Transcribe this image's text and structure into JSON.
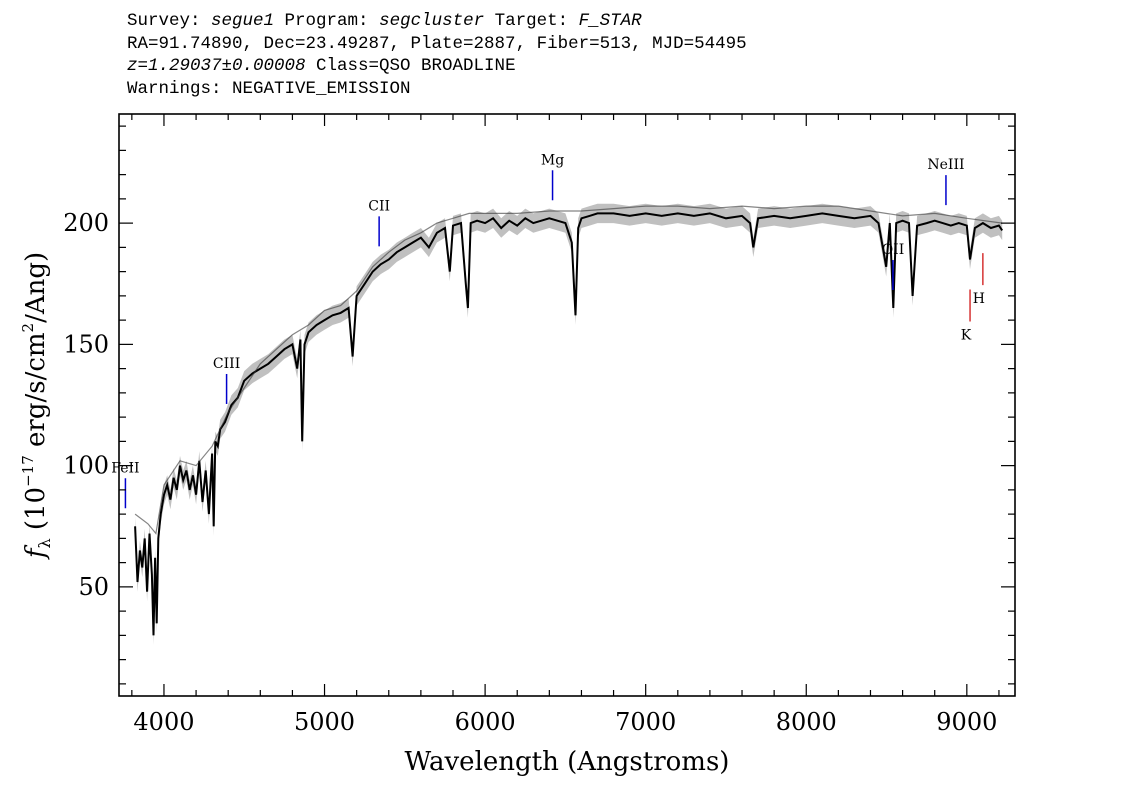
{
  "header": {
    "survey_label": "Survey: ",
    "survey": "segue1",
    "program_label": " Program: ",
    "program": "segcluster",
    "target_label": " Target: ",
    "target": "F_STAR",
    "line2": "RA=91.74890, Dec=23.49287, Plate=2887, Fiber=513, MJD=54495",
    "z": "z=1.29037±0.00008",
    "class": " Class=QSO BROADLINE",
    "warnings": "Warnings: NEGATIVE_EMISSION"
  },
  "chart_data": {
    "type": "line",
    "xlabel": "Wavelength (Angstroms)",
    "ylabel": "f_λ (10^-17 erg/s/cm^2/Ang)",
    "xlim": [
      3720,
      9300
    ],
    "ylim": [
      5,
      245
    ],
    "xticks": [
      4000,
      5000,
      6000,
      7000,
      8000,
      9000
    ],
    "yticks": [
      50,
      100,
      150,
      200
    ],
    "series": [
      {
        "name": "",
        "x": [
          3820,
          3835,
          3850,
          3865,
          3880,
          3895,
          3910,
          3925,
          3935,
          3945,
          3955,
          3965,
          3980,
          4000,
          4020,
          4040,
          4060,
          4080,
          4100,
          4120,
          4140,
          4160,
          4180,
          4200,
          4220,
          4240,
          4260,
          4280,
          4300,
          4310,
          4320,
          4335,
          4350,
          4380,
          4420,
          4460,
          4500,
          4550,
          4600,
          4650,
          4700,
          4750,
          4800,
          4830,
          4850,
          4861,
          4875,
          4900,
          4950,
          5000,
          5050,
          5100,
          5150,
          5175,
          5200,
          5250,
          5300,
          5350,
          5400,
          5450,
          5500,
          5550,
          5600,
          5650,
          5700,
          5750,
          5780,
          5800,
          5850,
          5880,
          5893,
          5910,
          5950,
          6000,
          6050,
          6100,
          6150,
          6200,
          6250,
          6300,
          6350,
          6400,
          6450,
          6500,
          6540,
          6563,
          6580,
          6600,
          6650,
          6700,
          6800,
          6900,
          7000,
          7100,
          7200,
          7300,
          7400,
          7500,
          7600,
          7650,
          7670,
          7700,
          7800,
          7900,
          8000,
          8100,
          8200,
          8300,
          8400,
          8450,
          8498,
          8520,
          8542,
          8560,
          8600,
          8640,
          8662,
          8690,
          8750,
          8800,
          8850,
          8900,
          8950,
          9000,
          9020,
          9050,
          9100,
          9150,
          9200,
          9220
        ],
        "y": [
          75,
          52,
          65,
          58,
          70,
          48,
          72,
          55,
          30,
          62,
          35,
          70,
          80,
          88,
          92,
          86,
          95,
          90,
          100,
          94,
          98,
          90,
          96,
          88,
          102,
          85,
          98,
          80,
          105,
          75,
          110,
          108,
          115,
          118,
          125,
          128,
          135,
          138,
          140,
          142,
          145,
          148,
          150,
          140,
          152,
          110,
          150,
          155,
          158,
          160,
          162,
          163,
          165,
          145,
          170,
          175,
          180,
          183,
          185,
          188,
          190,
          192,
          194,
          190,
          196,
          198,
          180,
          199,
          200,
          175,
          165,
          200,
          201,
          200,
          202,
          198,
          201,
          199,
          202,
          200,
          201,
          202,
          201,
          200,
          192,
          162,
          198,
          202,
          203,
          204,
          204,
          203,
          204,
          203,
          204,
          203,
          204,
          202,
          203,
          200,
          190,
          202,
          203,
          202,
          203,
          204,
          203,
          202,
          203,
          200,
          182,
          200,
          165,
          200,
          201,
          200,
          170,
          199,
          200,
          201,
          200,
          199,
          200,
          199,
          185,
          198,
          200,
          198,
          199,
          197
        ]
      },
      {
        "name": "",
        "x": [
          3820,
          3900,
          3950,
          4000,
          4100,
          4200,
          4300,
          4400,
          4500,
          4600,
          4700,
          4800,
          4900,
          5000,
          5100,
          5200,
          5300,
          5400,
          5500,
          5600,
          5700,
          5800,
          5900,
          6000,
          6200,
          6400,
          6600,
          6800,
          7000,
          7200,
          7400,
          7600,
          7800,
          8000,
          8200,
          8400,
          8600,
          8800,
          9000,
          9220
        ],
        "y": [
          80,
          76,
          72,
          92,
          102,
          100,
          108,
          122,
          132,
          142,
          148,
          154,
          158,
          164,
          166,
          172,
          182,
          188,
          193,
          196,
          200,
          202,
          204,
          204,
          204,
          205,
          205,
          206,
          207,
          207,
          206,
          207,
          206,
          207,
          207,
          205,
          203,
          204,
          202,
          200
        ]
      }
    ],
    "lines": [
      {
        "label": "FeII",
        "x": 3760,
        "color": "#0000cc",
        "placement": "above"
      },
      {
        "label": "CIII",
        "x": 4390,
        "color": "#0000cc",
        "placement": "above"
      },
      {
        "label": "CII",
        "x": 5340,
        "color": "#0000cc",
        "placement": "above"
      },
      {
        "label": "Mg",
        "x": 6420,
        "color": "#0000cc",
        "placement": "above"
      },
      {
        "label": "OII",
        "x": 8540,
        "color": "#0000cc",
        "placement": "above"
      },
      {
        "label": "NeIII",
        "x": 8870,
        "color": "#0000cc",
        "placement": "above"
      },
      {
        "label": "K",
        "x": 9020,
        "color": "#cc0000",
        "placement": "below"
      },
      {
        "label": "H",
        "x": 9100,
        "color": "#cc0000",
        "placement": "below"
      }
    ],
    "colors": {
      "flux": "#000000",
      "error_band": "#c0c0c0",
      "emission": "#0000cc",
      "absorption": "#cc0000"
    },
    "grid": false
  }
}
